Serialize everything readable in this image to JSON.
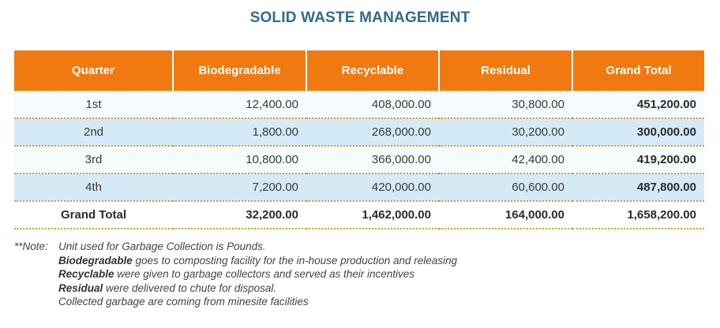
{
  "title": "SOLID WASTE MANAGEMENT",
  "table": {
    "headers": [
      "Quarter",
      "Biodegradable",
      "Recyclable",
      "Residual",
      "Grand Total"
    ],
    "rows": [
      [
        "1st",
        "12,400.00",
        "408,000.00",
        "30,800.00",
        "451,200.00"
      ],
      [
        "2nd",
        "1,800.00",
        "268,000.00",
        "30,200.00",
        "300,000.00"
      ],
      [
        "3rd",
        "10,800.00",
        "366,000.00",
        "42,400.00",
        "419,200.00"
      ],
      [
        "4th",
        "7,200.00",
        "420,000.00",
        "60,600.00",
        "487,800.00"
      ]
    ],
    "total": [
      "Grand Total",
      "32,200.00",
      "1,462,000.00",
      "164,000.00",
      "1,658,200.00"
    ]
  },
  "notes": {
    "prefix": "**Note:",
    "line1": "Unit used for Garbage Collection is Pounds.",
    "line2_bold": "Biodegradable",
    "line2_rest": " goes to composting facility for the in-house production and releasing",
    "line3_bold": "Recyclable",
    "line3_rest": " were given to garbage collectors and served as their incentives",
    "line4_bold": "Residual",
    "line4_rest": " were delivered to chute for disposal.",
    "line5": "Collected garbage are coming from minesite facilities"
  }
}
